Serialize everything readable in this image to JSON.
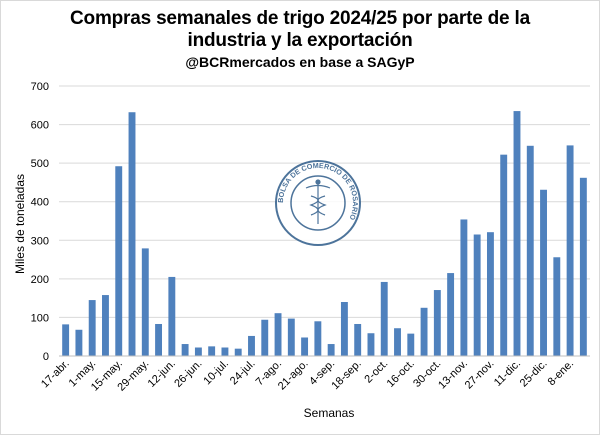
{
  "title_line1": "Compras semanales de trigo 2024/25 por parte de la",
  "title_line2": "industria y la exportación",
  "subtitle": "@BCRmercados en base a SAGyP",
  "logo_text": "BOLSA DE COMERCIO DE ROSARIO",
  "chart_data": {
    "type": "bar",
    "title": "Compras semanales de trigo 2024/25 por parte de la industria y la exportación",
    "subtitle": "@BCRmercados en base a SAGyP",
    "xlabel": "Semanas",
    "ylabel": "Miles de toneladas",
    "ylim": [
      0,
      700
    ],
    "yticks": [
      0,
      100,
      200,
      300,
      400,
      500,
      600,
      700
    ],
    "x_tick_labels": [
      "17-abr.",
      "1-may.",
      "15-may.",
      "29-may.",
      "12-jun.",
      "26-jun.",
      "10-jul.",
      "24-jul.",
      "7-ago.",
      "21-ago.",
      "4-sep.",
      "18-sep.",
      "2-oct.",
      "16-oct.",
      "30-oct.",
      "13-nov.",
      "27-nov.",
      "11-dic.",
      "25-dic.",
      "8-ene."
    ],
    "bar_color": "#4f81bd",
    "grid": true,
    "values": [
      82,
      68,
      145,
      158,
      492,
      632,
      279,
      83,
      205,
      31,
      22,
      25,
      22,
      19,
      52,
      94,
      111,
      97,
      48,
      90,
      31,
      140,
      83,
      59,
      192,
      72,
      58,
      125,
      171,
      215,
      354,
      315,
      321,
      522,
      635,
      545,
      431,
      256,
      546,
      462
    ]
  }
}
